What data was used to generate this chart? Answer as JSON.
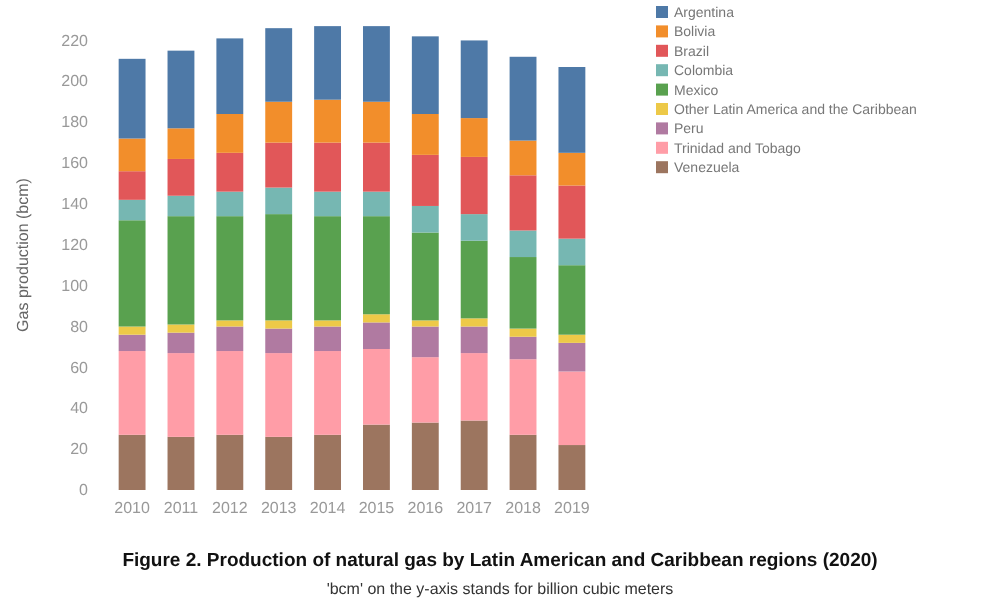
{
  "chart_data": {
    "type": "bar",
    "stacked": true,
    "title": "Figure 2. Production of natural gas by Latin American and Caribbean regions (2020)",
    "subtitle": "'bcm' on the y-axis stands for billion cubic meters",
    "ylabel": "Gas production (bcm)",
    "categories": [
      "2010",
      "2011",
      "2012",
      "2013",
      "2014",
      "2015",
      "2016",
      "2017",
      "2018",
      "2019"
    ],
    "series": [
      {
        "name": "Venezuela",
        "color": "#9c755f",
        "values": [
          27,
          26,
          27,
          26,
          27,
          32,
          33,
          34,
          27,
          22
        ]
      },
      {
        "name": "Trinidad and Tobago",
        "color": "#ff9da7",
        "values": [
          41,
          41,
          41,
          41,
          41,
          37,
          32,
          33,
          37,
          36
        ]
      },
      {
        "name": "Peru",
        "color": "#b07aa1",
        "values": [
          8,
          10,
          12,
          12,
          12,
          13,
          15,
          13,
          11,
          14
        ]
      },
      {
        "name": "Other Latin America and the Caribbean",
        "color": "#edc948",
        "values": [
          4,
          4,
          3,
          4,
          3,
          4,
          3,
          4,
          4,
          4
        ]
      },
      {
        "name": "Mexico",
        "color": "#59a14f",
        "values": [
          52,
          53,
          51,
          52,
          51,
          48,
          43,
          38,
          35,
          34
        ]
      },
      {
        "name": "Colombia",
        "color": "#76b7b2",
        "values": [
          10,
          10,
          12,
          13,
          12,
          12,
          13,
          13,
          13,
          13
        ]
      },
      {
        "name": "Brazil",
        "color": "#e15759",
        "values": [
          14,
          18,
          19,
          22,
          24,
          24,
          25,
          28,
          27,
          26
        ]
      },
      {
        "name": "Bolivia",
        "color": "#f28e2b",
        "values": [
          16,
          15,
          19,
          20,
          21,
          20,
          20,
          19,
          17,
          16
        ]
      },
      {
        "name": "Argentina",
        "color": "#4e79a7",
        "values": [
          39,
          38,
          37,
          36,
          36,
          37,
          38,
          38,
          41,
          42
        ]
      }
    ],
    "ylim": [
      0,
      230
    ],
    "yticks": [
      0,
      20,
      40,
      60,
      80,
      100,
      120,
      140,
      160,
      180,
      200,
      220
    ],
    "legend": "top right"
  }
}
